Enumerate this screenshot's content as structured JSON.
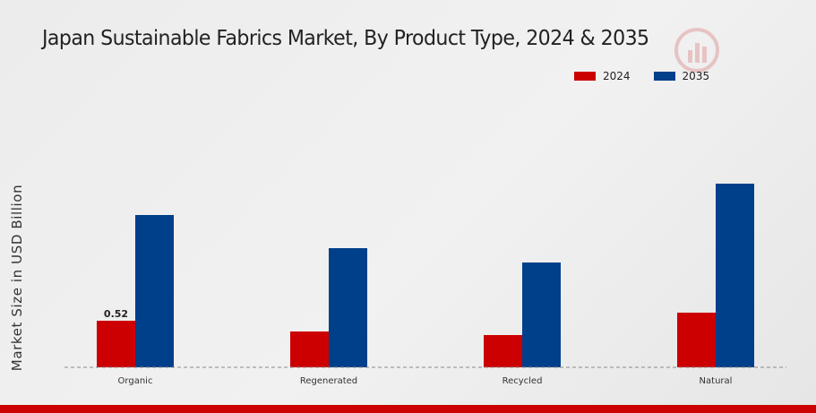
{
  "chart_data": {
    "type": "bar",
    "title": "Japan Sustainable Fabrics Market, By Product Type, 2024 & 2035",
    "xlabel": "",
    "ylabel": "Market Size in USD Billion",
    "categories": [
      "Organic",
      "Regenerated",
      "Recycled",
      "Natural"
    ],
    "series": [
      {
        "name": "2024",
        "color": "#cc0000",
        "values": [
          0.52,
          0.4,
          0.36,
          0.61
        ]
      },
      {
        "name": "2035",
        "color": "#003f8a",
        "values": [
          1.7,
          1.33,
          1.17,
          2.05
        ]
      }
    ],
    "data_labels": [
      {
        "series": 0,
        "index": 0,
        "text": "0.52"
      }
    ],
    "ylim": [
      0,
      2.8
    ],
    "grid": false,
    "legend_position": "top-right",
    "baseline_style": "dashed"
  }
}
